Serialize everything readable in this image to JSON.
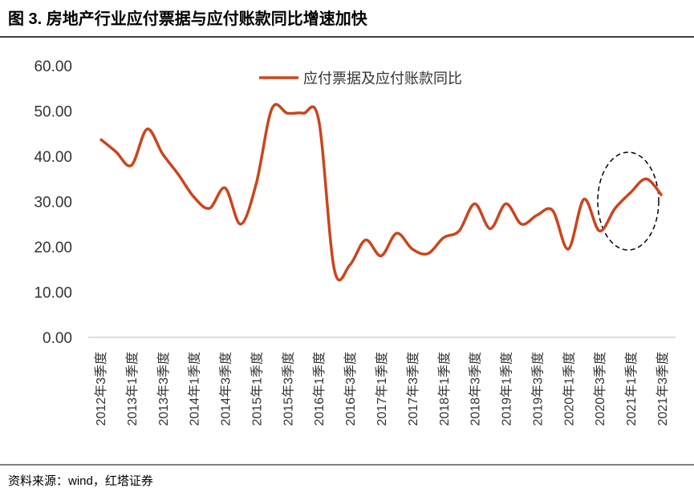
{
  "chart_data": {
    "type": "line",
    "title": "图 3. 房地产行业应付票据与应付账款同比增速加快",
    "source": "资料来源：wind，红塔证券",
    "categories": [
      "2012年3季度",
      null,
      "2013年1季度",
      null,
      "2013年3季度",
      null,
      "2014年1季度",
      null,
      "2014年3季度",
      null,
      "2015年1季度",
      null,
      "2015年3季度",
      null,
      "2016年1季度",
      null,
      "2016年3季度",
      null,
      "2017年1季度",
      null,
      "2017年3季度",
      null,
      "2018年1季度",
      null,
      "2018年3季度",
      null,
      "2019年1季度",
      null,
      "2019年3季度",
      null,
      "2020年1季度",
      null,
      "2020年3季度",
      null,
      "2021年1季度",
      null,
      "2021年3季度"
    ],
    "series": [
      {
        "name": "应付票据及应付账款同比",
        "color": "#c9461d",
        "values": [
          43.8,
          41,
          38,
          46,
          40.5,
          36,
          31,
          28.5,
          33,
          25,
          34,
          50.5,
          49.5,
          49.5,
          48,
          15,
          16,
          21.5,
          18,
          23,
          19.5,
          18.5,
          22,
          23.5,
          29.5,
          24,
          29.5,
          25,
          27,
          28,
          19.5,
          30.5,
          23.5,
          28.5,
          32,
          35,
          31.3
        ]
      }
    ],
    "ylim": [
      0,
      60
    ],
    "yticks": [
      {
        "value": 0,
        "label": "0.00"
      },
      {
        "value": 10,
        "label": "10.00"
      },
      {
        "value": 20,
        "label": "20.00"
      },
      {
        "value": 30,
        "label": "30.00"
      },
      {
        "value": 40,
        "label": "40.00"
      },
      {
        "value": 50,
        "label": "50.00"
      },
      {
        "value": 60,
        "label": "60.00"
      }
    ],
    "grid": false,
    "legend": "top"
  }
}
